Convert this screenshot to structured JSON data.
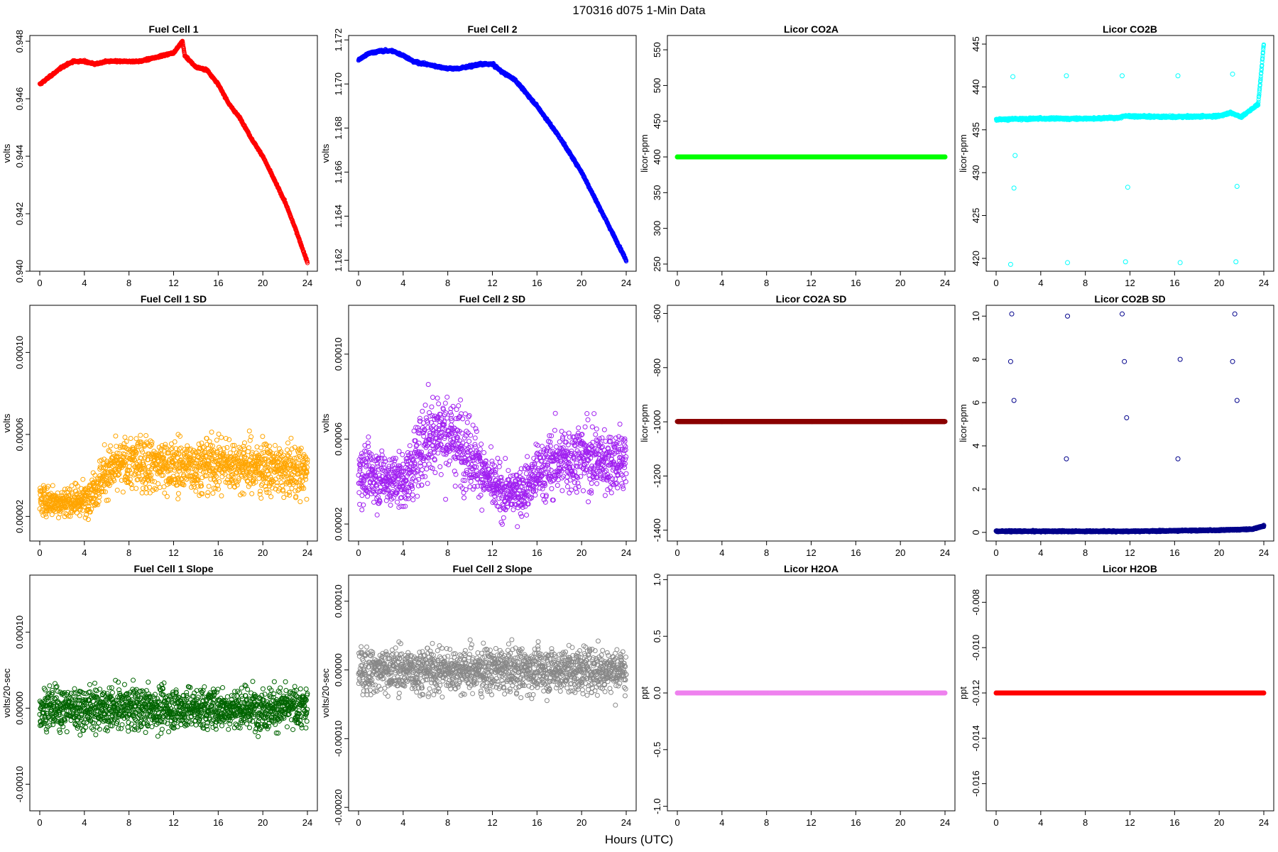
{
  "figure": {
    "title": "170316   d075   1-Min Data",
    "xlabel": "Hours (UTC)"
  },
  "chart_data": [
    {
      "id": "fc1",
      "type": "scatter",
      "title": "Fuel Cell 1",
      "ylabel": "volts",
      "color": "#ff0000",
      "xlim": [
        0,
        24
      ],
      "xticks": [
        0,
        4,
        8,
        12,
        16,
        20,
        24
      ],
      "ylim": [
        0.94,
        0.9482
      ],
      "yticks": [
        0.94,
        0.942,
        0.944,
        0.946,
        0.948
      ],
      "ytick_labels": [
        "0.940",
        "0.942",
        "0.944",
        "0.946",
        "0.948"
      ],
      "x": [
        0,
        1,
        2,
        3,
        4,
        5,
        6,
        7,
        8,
        9,
        10,
        11,
        12,
        12.8,
        13,
        14,
        15,
        16,
        17,
        18,
        19,
        20,
        21,
        22,
        23,
        24
      ],
      "y": [
        0.9465,
        0.9468,
        0.9471,
        0.9473,
        0.9473,
        0.9472,
        0.9473,
        0.9473,
        0.9473,
        0.9473,
        0.9474,
        0.9475,
        0.9476,
        0.948,
        0.9475,
        0.9471,
        0.947,
        0.9465,
        0.9458,
        0.9453,
        0.9446,
        0.944,
        0.9432,
        0.9424,
        0.9414,
        0.9403
      ]
    },
    {
      "id": "fc2",
      "type": "scatter",
      "title": "Fuel Cell 2",
      "ylabel": "volts",
      "color": "#0000ff",
      "xlim": [
        0,
        24
      ],
      "xticks": [
        0,
        4,
        8,
        12,
        16,
        20,
        24
      ],
      "ylim": [
        1.1615,
        1.1722
      ],
      "yticks": [
        1.162,
        1.164,
        1.166,
        1.168,
        1.17,
        1.172
      ],
      "ytick_labels": [
        "1.162",
        "1.164",
        "1.166",
        "1.168",
        "1.170",
        "1.172"
      ],
      "x": [
        0,
        1,
        2,
        3,
        4,
        5,
        6,
        7,
        8,
        9,
        10,
        11,
        12,
        13,
        14,
        15,
        16,
        17,
        18,
        19,
        20,
        21,
        22,
        23,
        24
      ],
      "y": [
        1.1711,
        1.1714,
        1.1715,
        1.1715,
        1.1713,
        1.171,
        1.1709,
        1.1708,
        1.1707,
        1.1707,
        1.1708,
        1.1709,
        1.1709,
        1.1705,
        1.1702,
        1.1696,
        1.169,
        1.1683,
        1.1676,
        1.1668,
        1.166,
        1.165,
        1.164,
        1.163,
        1.162
      ]
    },
    {
      "id": "co2a",
      "type": "scatter",
      "title": "Licor CO2A",
      "ylabel": "licor-ppm",
      "color": "#00ff00",
      "xlim": [
        0,
        24
      ],
      "xticks": [
        0,
        4,
        8,
        12,
        16,
        20,
        24
      ],
      "ylim": [
        240,
        570
      ],
      "yticks": [
        250,
        300,
        350,
        400,
        450,
        500,
        550
      ],
      "ytick_labels": [
        "250",
        "300",
        "350",
        "400",
        "450",
        "500",
        "550"
      ],
      "x": [
        0,
        24
      ],
      "y": [
        400,
        400
      ]
    },
    {
      "id": "co2b",
      "type": "scatter",
      "title": "Licor CO2B",
      "ylabel": "licor-ppm",
      "color": "#00ffff",
      "xlim": [
        0,
        24
      ],
      "xticks": [
        0,
        4,
        8,
        12,
        16,
        20,
        24
      ],
      "ylim": [
        418.5,
        446
      ],
      "yticks": [
        420,
        425,
        430,
        435,
        440,
        445
      ],
      "ytick_labels": [
        "420",
        "425",
        "430",
        "435",
        "440",
        "445"
      ],
      "x": [
        0,
        4,
        8,
        11,
        11.5,
        16,
        20,
        21,
        22,
        23.5,
        24
      ],
      "y": [
        436.2,
        436.3,
        436.3,
        436.4,
        436.6,
        436.5,
        436.6,
        437,
        436.5,
        438,
        445
      ],
      "outliers_x": [
        1.3,
        1.5,
        1.6,
        1.7,
        6.3,
        6.4,
        11.3,
        11.6,
        11.8,
        16.3,
        16.5,
        21.2,
        21.5,
        21.6
      ],
      "outliers_y": [
        419.3,
        441.2,
        428.2,
        432.0,
        441.3,
        419.5,
        441.3,
        419.6,
        428.3,
        441.3,
        419.5,
        441.5,
        419.6,
        428.4
      ]
    },
    {
      "id": "fc1sd",
      "type": "scatter",
      "title": "Fuel Cell 1 SD",
      "ylabel": "volts",
      "color": "#ffa500",
      "xlim": [
        0,
        24
      ],
      "xticks": [
        0,
        4,
        8,
        12,
        16,
        20,
        24
      ],
      "ylim": [
        8e-06,
        0.000123
      ],
      "yticks": [
        2e-05,
        6e-05,
        0.0001
      ],
      "ytick_labels": [
        "0.00002",
        "0.00006",
        "0.00010"
      ],
      "x": [
        0,
        2,
        4,
        5,
        6,
        8,
        10,
        12,
        14,
        16,
        18,
        20,
        22,
        24
      ],
      "y": [
        2.8e-05,
        2.7e-05,
        2.8e-05,
        3.4e-05,
        4.2e-05,
        4.6e-05,
        4.6e-05,
        4.4e-05,
        4.5e-05,
        4.6e-05,
        4.5e-05,
        4.4e-05,
        4.2e-05,
        4.2e-05
      ]
    },
    {
      "id": "fc2sd",
      "type": "scatter",
      "title": "Fuel Cell 2 SD",
      "ylabel": "volts",
      "color": "#a020f0",
      "xlim": [
        0,
        24
      ],
      "xticks": [
        0,
        4,
        8,
        12,
        16,
        20,
        24
      ],
      "ylim": [
        1.2e-05,
        0.000123
      ],
      "yticks": [
        2e-05,
        6e-05,
        0.0001
      ],
      "ytick_labels": [
        "0.00002",
        "0.00006",
        "0.00010"
      ],
      "x": [
        0,
        2,
        4,
        5,
        6,
        7,
        8,
        9,
        10,
        11,
        12,
        13,
        14,
        15,
        16,
        18,
        20,
        22,
        24
      ],
      "y": [
        4.5e-05,
        4.2e-05,
        4e-05,
        4.8e-05,
        6e-05,
        6.4e-05,
        6.2e-05,
        5.8e-05,
        5.4e-05,
        4.6e-05,
        3.8e-05,
        3.4e-05,
        3.5e-05,
        3.7e-05,
        4.4e-05,
        5e-05,
        5.2e-05,
        5e-05,
        5e-05
      ]
    },
    {
      "id": "co2asd",
      "type": "scatter",
      "title": "Licor CO2A SD",
      "ylabel": "licor-ppm",
      "color": "#8b0000",
      "xlim": [
        0,
        24
      ],
      "xticks": [
        0,
        4,
        8,
        12,
        16,
        20,
        24
      ],
      "ylim": [
        -1440,
        -570
      ],
      "yticks": [
        -1400,
        -1200,
        -1000,
        -800,
        -600
      ],
      "ytick_labels": [
        "-1400",
        "-1200",
        "-1000",
        "-800",
        "-600"
      ],
      "x": [
        0,
        24
      ],
      "y": [
        -999,
        -999
      ]
    },
    {
      "id": "co2bsd",
      "type": "scatter",
      "title": "Licor CO2B SD",
      "ylabel": "licor-ppm",
      "color": "#00008b",
      "xlim": [
        0,
        24
      ],
      "xticks": [
        0,
        4,
        8,
        12,
        16,
        20,
        24
      ],
      "ylim": [
        -0.4,
        10.5
      ],
      "yticks": [
        0,
        2,
        4,
        6,
        8,
        10
      ],
      "ytick_labels": [
        "0",
        "2",
        "4",
        "6",
        "8",
        "10"
      ],
      "x": [
        0,
        12,
        20,
        23,
        24
      ],
      "y": [
        0.05,
        0.05,
        0.1,
        0.15,
        0.3
      ],
      "outliers_x": [
        1.3,
        1.4,
        1.6,
        6.3,
        6.4,
        11.3,
        11.5,
        11.7,
        16.3,
        16.5,
        21.2,
        21.4,
        21.6
      ],
      "outliers_y": [
        7.9,
        10.1,
        6.1,
        3.4,
        10.0,
        10.1,
        7.9,
        5.3,
        3.4,
        8.0,
        7.9,
        10.1,
        6.1
      ]
    },
    {
      "id": "fc1slope",
      "type": "scatter",
      "title": "Fuel Cell 1 Slope",
      "ylabel": "volts/20-sec",
      "color": "#006400",
      "xlim": [
        0,
        24
      ],
      "xticks": [
        0,
        4,
        8,
        12,
        16,
        20,
        24
      ],
      "ylim": [
        -0.000135,
        0.000175
      ],
      "yticks": [
        -0.0001,
        0,
        0.0001
      ],
      "ytick_labels": [
        "-0.00010",
        "0.00000",
        "0.00010"
      ],
      "x": [
        0,
        24
      ],
      "y": [
        0,
        0
      ]
    },
    {
      "id": "fc2slope",
      "type": "scatter",
      "title": "Fuel Cell 2 Slope",
      "ylabel": "volts/20-sec",
      "color": "#888888",
      "xlim": [
        0,
        24
      ],
      "xticks": [
        0,
        4,
        8,
        12,
        16,
        20,
        24
      ],
      "ylim": [
        -0.000205,
        0.000138
      ],
      "yticks": [
        -0.0002,
        -0.0001,
        0,
        0.0001
      ],
      "ytick_labels": [
        "-0.00020",
        "-0.00010",
        "0.00000",
        "0.00010"
      ],
      "x": [
        0,
        24
      ],
      "y": [
        0,
        0
      ]
    },
    {
      "id": "h2oa",
      "type": "scatter",
      "title": "Licor H2OA",
      "ylabel": "ppt",
      "color": "#ee82ee",
      "xlim": [
        0,
        24
      ],
      "xticks": [
        0,
        4,
        8,
        12,
        16,
        20,
        24
      ],
      "ylim": [
        -1.04,
        1.04
      ],
      "yticks": [
        -1.0,
        -0.5,
        0,
        0.5,
        1.0
      ],
      "ytick_labels": [
        "-1.0",
        "-0.5",
        "0.0",
        "0.5",
        "1.0"
      ],
      "x": [
        0,
        24
      ],
      "y": [
        0,
        0
      ]
    },
    {
      "id": "h2ob",
      "type": "scatter",
      "title": "Licor H2OB",
      "ylabel": "ppt",
      "color": "#ff0000",
      "xlim": [
        0,
        24
      ],
      "xticks": [
        0,
        4,
        8,
        12,
        16,
        20,
        24
      ],
      "ylim": [
        -0.0172,
        -0.0068
      ],
      "yticks": [
        -0.016,
        -0.014,
        -0.012,
        -0.01,
        -0.008
      ],
      "ytick_labels": [
        "-0.016",
        "-0.014",
        "-0.012",
        "-0.010",
        "-0.008"
      ],
      "x": [
        0,
        24
      ],
      "y": [
        -0.012,
        -0.012
      ]
    }
  ]
}
